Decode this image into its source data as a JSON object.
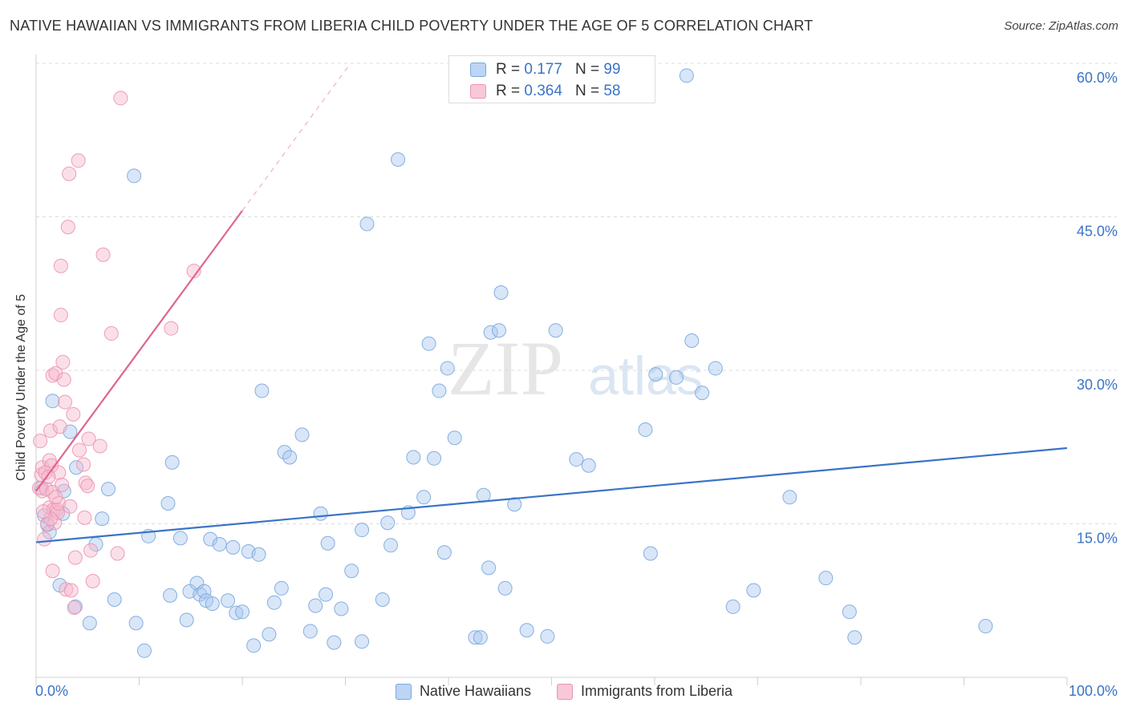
{
  "title": "NATIVE HAWAIIAN VS IMMIGRANTS FROM LIBERIA CHILD POVERTY UNDER THE AGE OF 5 CORRELATION CHART",
  "source": "Source: ZipAtlas.com",
  "watermark": {
    "zip": "ZIP",
    "atlas": "atlas"
  },
  "legend_top": {
    "series1": {
      "r_label": "R =",
      "r_value": "0.177",
      "n_label": "N =",
      "n_value": "99"
    },
    "series2": {
      "r_label": "R =",
      "r_value": "0.364",
      "n_label": "N =",
      "n_value": "58"
    }
  },
  "colors": {
    "blue_fill": "#a8c8f0",
    "blue_stroke": "#7aa7dd",
    "blue_line": "#3a74c6",
    "pink_fill": "#f6b8cc",
    "pink_stroke": "#ec93b1",
    "pink_line": "#e0648f",
    "axis_label": "#3a74c6",
    "grid": "#dcdcdc"
  },
  "chart_data": {
    "type": "scatter",
    "title": "NATIVE HAWAIIAN VS IMMIGRANTS FROM LIBERIA CHILD POVERTY UNDER THE AGE OF 5 CORRELATION CHART",
    "xlabel": "",
    "ylabel": "Child Poverty Under the Age of 5",
    "xlim": [
      0,
      100
    ],
    "ylim": [
      0,
      60
    ],
    "x_tick_labels": {
      "min": "0.0%",
      "max": "100.0%"
    },
    "y_ticks": [
      15,
      30,
      45,
      60
    ],
    "y_tick_labels": [
      "15.0%",
      "30.0%",
      "45.0%",
      "60.0%"
    ],
    "legend_position": "bottom-center",
    "series": [
      {
        "name": "Native Hawaiians",
        "color": "#a8c8f0",
        "trend": {
          "x": [
            0,
            100
          ],
          "y": [
            13.2,
            22.4
          ]
        },
        "points": [
          [
            0.5,
            18.5
          ],
          [
            0.8,
            15.8
          ],
          [
            1.1,
            14.9
          ],
          [
            1.3,
            14.2
          ],
          [
            1.6,
            27.0
          ],
          [
            2.3,
            9.0
          ],
          [
            2.6,
            16.0
          ],
          [
            2.7,
            18.2
          ],
          [
            3.3,
            24.0
          ],
          [
            3.8,
            6.9
          ],
          [
            3.9,
            20.5
          ],
          [
            5.2,
            5.3
          ],
          [
            5.8,
            13.0
          ],
          [
            6.4,
            15.5
          ],
          [
            7.0,
            18.4
          ],
          [
            7.6,
            7.6
          ],
          [
            9.5,
            49.0
          ],
          [
            9.7,
            5.3
          ],
          [
            10.5,
            2.6
          ],
          [
            10.9,
            13.8
          ],
          [
            12.8,
            17.0
          ],
          [
            13.2,
            21.0
          ],
          [
            13.0,
            8.0
          ],
          [
            14.0,
            13.6
          ],
          [
            14.6,
            5.6
          ],
          [
            14.9,
            8.4
          ],
          [
            15.6,
            9.2
          ],
          [
            15.9,
            8.1
          ],
          [
            16.3,
            8.4
          ],
          [
            16.5,
            7.5
          ],
          [
            16.9,
            13.5
          ],
          [
            17.1,
            7.2
          ],
          [
            17.8,
            13.0
          ],
          [
            18.6,
            7.5
          ],
          [
            19.1,
            12.7
          ],
          [
            19.4,
            6.3
          ],
          [
            20.0,
            6.4
          ],
          [
            20.6,
            12.3
          ],
          [
            21.1,
            3.1
          ],
          [
            21.6,
            12.0
          ],
          [
            21.9,
            28.0
          ],
          [
            22.6,
            4.2
          ],
          [
            23.1,
            7.3
          ],
          [
            23.8,
            8.7
          ],
          [
            24.1,
            22.0
          ],
          [
            24.6,
            21.5
          ],
          [
            25.8,
            23.7
          ],
          [
            26.6,
            4.5
          ],
          [
            27.1,
            7.0
          ],
          [
            27.6,
            16.0
          ],
          [
            28.1,
            8.1
          ],
          [
            28.3,
            13.1
          ],
          [
            28.9,
            3.4
          ],
          [
            29.6,
            6.7
          ],
          [
            30.6,
            10.4
          ],
          [
            31.6,
            14.4
          ],
          [
            31.6,
            3.5
          ],
          [
            32.1,
            44.3
          ],
          [
            33.6,
            7.6
          ],
          [
            34.1,
            15.1
          ],
          [
            34.4,
            12.9
          ],
          [
            35.1,
            50.6
          ],
          [
            36.1,
            16.1
          ],
          [
            36.6,
            21.5
          ],
          [
            37.6,
            17.6
          ],
          [
            38.1,
            32.6
          ],
          [
            38.6,
            21.4
          ],
          [
            39.1,
            28.0
          ],
          [
            39.6,
            12.2
          ],
          [
            39.9,
            30.2
          ],
          [
            40.6,
            23.4
          ],
          [
            42.6,
            3.9
          ],
          [
            43.1,
            3.9
          ],
          [
            43.4,
            17.8
          ],
          [
            43.9,
            10.7
          ],
          [
            44.1,
            33.7
          ],
          [
            44.9,
            33.9
          ],
          [
            45.1,
            37.6
          ],
          [
            45.5,
            8.7
          ],
          [
            46.4,
            16.9
          ],
          [
            47.6,
            4.6
          ],
          [
            49.6,
            4.0
          ],
          [
            50.4,
            33.9
          ],
          [
            52.4,
            21.3
          ],
          [
            53.6,
            20.7
          ],
          [
            59.1,
            24.2
          ],
          [
            59.6,
            12.1
          ],
          [
            60.1,
            29.6
          ],
          [
            62.1,
            29.3
          ],
          [
            63.1,
            58.8
          ],
          [
            63.6,
            32.9
          ],
          [
            64.6,
            27.8
          ],
          [
            65.9,
            30.2
          ],
          [
            67.6,
            6.9
          ],
          [
            69.6,
            8.5
          ],
          [
            73.1,
            17.6
          ],
          [
            76.6,
            9.7
          ],
          [
            78.9,
            6.4
          ],
          [
            79.4,
            3.9
          ],
          [
            92.1,
            5.0
          ]
        ]
      },
      {
        "name": "Immigrants from Liberia",
        "color": "#f6b8cc",
        "trend": {
          "x": [
            0,
            20
          ],
          "y": [
            18.2,
            45.6
          ]
        },
        "trend_dashed": {
          "x": [
            20,
            30.5
          ],
          "y": [
            45.6,
            60
          ]
        },
        "points": [
          [
            0.3,
            18.5
          ],
          [
            0.4,
            23.1
          ],
          [
            0.5,
            19.8
          ],
          [
            0.6,
            20.5
          ],
          [
            0.6,
            18.2
          ],
          [
            0.8,
            13.5
          ],
          [
            1.1,
            15.0
          ],
          [
            1.3,
            21.2
          ],
          [
            1.3,
            16.6
          ],
          [
            1.4,
            24.1
          ],
          [
            1.5,
            20.7
          ],
          [
            1.6,
            10.4
          ],
          [
            1.6,
            29.5
          ],
          [
            1.7,
            16.4
          ],
          [
            1.8,
            15.1
          ],
          [
            1.9,
            29.7
          ],
          [
            2.0,
            16.4
          ],
          [
            2.1,
            16.1
          ],
          [
            2.2,
            17.0
          ],
          [
            2.2,
            20.0
          ],
          [
            2.3,
            24.5
          ],
          [
            2.4,
            35.4
          ],
          [
            2.4,
            40.2
          ],
          [
            2.6,
            30.8
          ],
          [
            2.7,
            29.1
          ],
          [
            2.8,
            26.9
          ],
          [
            2.9,
            8.6
          ],
          [
            3.1,
            44.0
          ],
          [
            3.2,
            49.2
          ],
          [
            3.4,
            8.5
          ],
          [
            3.6,
            25.7
          ],
          [
            3.7,
            6.8
          ],
          [
            3.8,
            11.7
          ],
          [
            4.1,
            50.5
          ],
          [
            4.2,
            22.2
          ],
          [
            4.6,
            20.8
          ],
          [
            4.7,
            15.6
          ],
          [
            4.8,
            19.0
          ],
          [
            5.0,
            18.7
          ],
          [
            5.1,
            23.3
          ],
          [
            5.3,
            12.4
          ],
          [
            5.5,
            9.4
          ],
          [
            6.2,
            22.6
          ],
          [
            6.5,
            41.3
          ],
          [
            7.3,
            33.6
          ],
          [
            7.9,
            12.1
          ],
          [
            8.2,
            56.6
          ],
          [
            13.1,
            34.1
          ],
          [
            15.3,
            39.7
          ],
          [
            1.0,
            18.4
          ],
          [
            1.4,
            15.5
          ],
          [
            0.9,
            20.0
          ],
          [
            1.6,
            18.1
          ],
          [
            1.2,
            19.6
          ],
          [
            0.7,
            16.2
          ],
          [
            1.9,
            17.6
          ],
          [
            2.5,
            18.8
          ],
          [
            3.3,
            16.7
          ]
        ]
      }
    ]
  }
}
